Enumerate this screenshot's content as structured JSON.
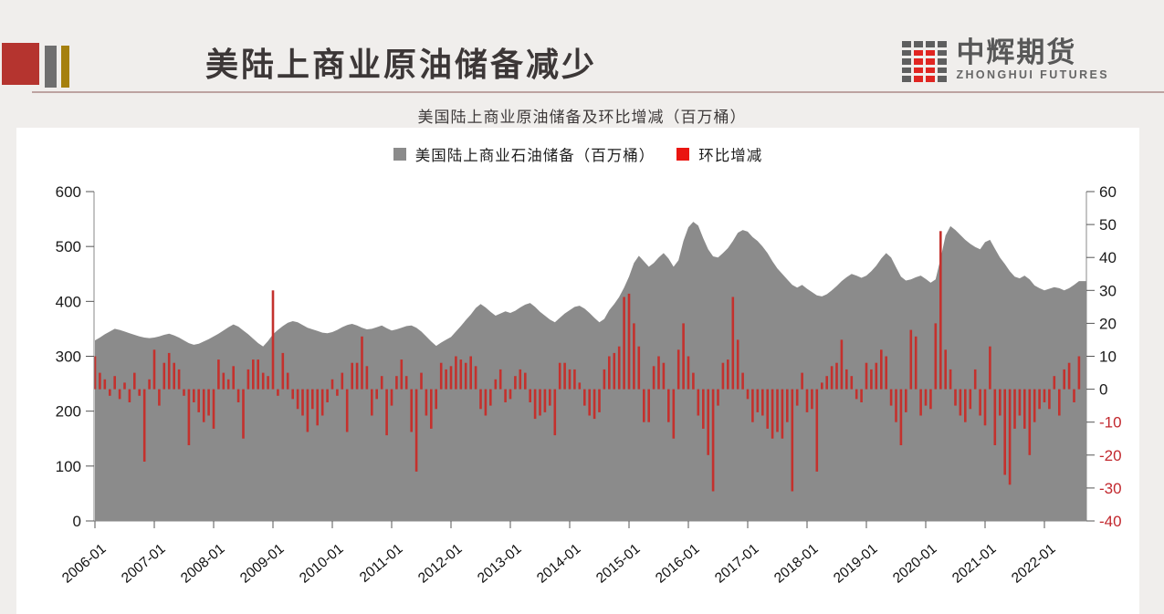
{
  "header": {
    "title": "美陆上商业原油储备减少",
    "accent_colors": {
      "red": "#b5342f",
      "gray": "#6f6f6f",
      "gold": "#a5800e"
    },
    "logo": {
      "cn": "中辉期货",
      "en": "ZHONGHUI FUTURES"
    }
  },
  "subtitle": "美国陆上商业原油储备及环比增减（百万桶）",
  "legend": [
    {
      "label": "美国陆上商业石油储备（百万桶）",
      "color": "#8b8b8b"
    },
    {
      "label": "环比增减",
      "color": "#ea1510"
    }
  ],
  "chart_data": {
    "type": "combo-area-bar",
    "x_start": "2006-01",
    "x_frequency": "monthly",
    "x_tick_labels": [
      "2006-01",
      "2007-01",
      "2008-01",
      "2009-01",
      "2010-01",
      "2011-01",
      "2012-01",
      "2013-01",
      "2014-01",
      "2015-01",
      "2016-01",
      "2017-01",
      "2018-01",
      "2019-01",
      "2020-01",
      "2021-01",
      "2022-01"
    ],
    "left_axis": {
      "ticks": [
        0,
        100,
        200,
        300,
        400,
        500,
        600
      ],
      "range": [
        0,
        600
      ],
      "label_color": "#1a1a1a"
    },
    "right_axis": {
      "ticks": [
        60,
        50,
        40,
        30,
        20,
        10,
        0,
        -10,
        -20,
        -30,
        -40
      ],
      "range": [
        -40,
        60
      ],
      "label_color": "#1a1a1a",
      "negative_label_color": "#c2282e"
    },
    "grid": false,
    "legend_position": "top-center",
    "series": [
      {
        "name": "美国陆上商业石油储备（百万桶）",
        "type": "area",
        "axis": "left",
        "color": "#8b8b8b",
        "values": [
          329,
          334,
          340,
          345,
          350,
          348,
          345,
          342,
          339,
          336,
          334,
          333,
          334,
          336,
          339,
          341,
          338,
          334,
          329,
          324,
          321,
          323,
          327,
          331,
          336,
          341,
          347,
          353,
          358,
          354,
          347,
          340,
          332,
          324,
          318,
          328,
          340,
          348,
          355,
          361,
          364,
          362,
          357,
          352,
          349,
          346,
          343,
          342,
          344,
          348,
          353,
          357,
          359,
          356,
          352,
          349,
          350,
          353,
          356,
          351,
          347,
          349,
          352,
          355,
          356,
          352,
          345,
          336,
          327,
          319,
          325,
          330,
          335,
          345,
          355,
          366,
          376,
          388,
          395,
          389,
          381,
          374,
          378,
          382,
          379,
          383,
          389,
          394,
          397,
          390,
          381,
          374,
          367,
          362,
          370,
          378,
          384,
          390,
          392,
          387,
          379,
          370,
          362,
          368,
          384,
          395,
          408,
          425,
          445,
          470,
          483,
          473,
          463,
          470,
          480,
          488,
          478,
          463,
          475,
          510,
          535,
          545,
          538,
          515,
          495,
          482,
          480,
          488,
          497,
          510,
          525,
          530,
          527,
          517,
          510,
          500,
          488,
          473,
          460,
          450,
          440,
          430,
          425,
          430,
          423,
          417,
          411,
          409,
          413,
          420,
          428,
          437,
          444,
          450,
          447,
          443,
          447,
          455,
          465,
          478,
          488,
          480,
          462,
          445,
          438,
          440,
          444,
          447,
          441,
          434,
          440,
          478,
          520,
          537,
          530,
          521,
          512,
          505,
          499,
          495,
          508,
          512,
          496,
          480,
          468,
          455,
          445,
          442,
          447,
          440,
          429,
          424,
          420,
          423,
          426,
          424,
          420,
          424,
          430,
          437
        ]
      },
      {
        "name": "环比增减",
        "type": "bar",
        "axis": "right",
        "color": "#c4312d",
        "values": [
          10,
          5,
          3,
          -2,
          4,
          -3,
          2,
          -4,
          5,
          -2,
          -22,
          3,
          12,
          -5,
          8,
          11,
          8,
          6,
          -2,
          -17,
          -4,
          -7,
          -10,
          -8,
          -12,
          9,
          5,
          3,
          7,
          -4,
          -15,
          6,
          9,
          9,
          5,
          4,
          30,
          -2,
          11,
          5,
          -3,
          -6,
          -8,
          -13,
          -6,
          -11,
          -8,
          -4,
          3,
          -2,
          5,
          -13,
          8,
          8,
          16,
          7,
          -8,
          -3,
          4,
          -14,
          -5,
          4,
          9,
          4,
          -13,
          -25,
          5,
          -8,
          -12,
          -6,
          8,
          6,
          7,
          10,
          9,
          8,
          10,
          7,
          -6,
          -8,
          -5,
          3,
          6,
          -4,
          -3,
          4,
          6,
          5,
          -4,
          -9,
          -8,
          -7,
          -5,
          -14,
          8,
          8,
          6,
          6,
          2,
          -5,
          -8,
          -9,
          -7,
          6,
          10,
          11,
          13,
          28,
          29,
          20,
          13,
          -10,
          -10,
          7,
          10,
          8,
          -10,
          -15,
          12,
          20,
          10,
          5,
          -8,
          -12,
          -20,
          -31,
          -5,
          8,
          9,
          28,
          15,
          5,
          -3,
          -10,
          -7,
          -8,
          -12,
          -15,
          -13,
          -15,
          -10,
          -31,
          -5,
          5,
          -7,
          -6,
          -25,
          2,
          4,
          7,
          8,
          15,
          6,
          4,
          -3,
          -4,
          8,
          6,
          8,
          12,
          10,
          -5,
          -10,
          -17,
          -7,
          18,
          16,
          -8,
          -5,
          -6,
          20,
          48,
          12,
          6,
          -5,
          -8,
          -10,
          -6,
          6,
          -8,
          -11,
          13,
          -17,
          -8,
          -26,
          -29,
          -12,
          -8,
          -12,
          -20,
          -10,
          -6,
          -4,
          -6,
          4,
          -8,
          6,
          8,
          -4,
          10
        ]
      }
    ]
  }
}
